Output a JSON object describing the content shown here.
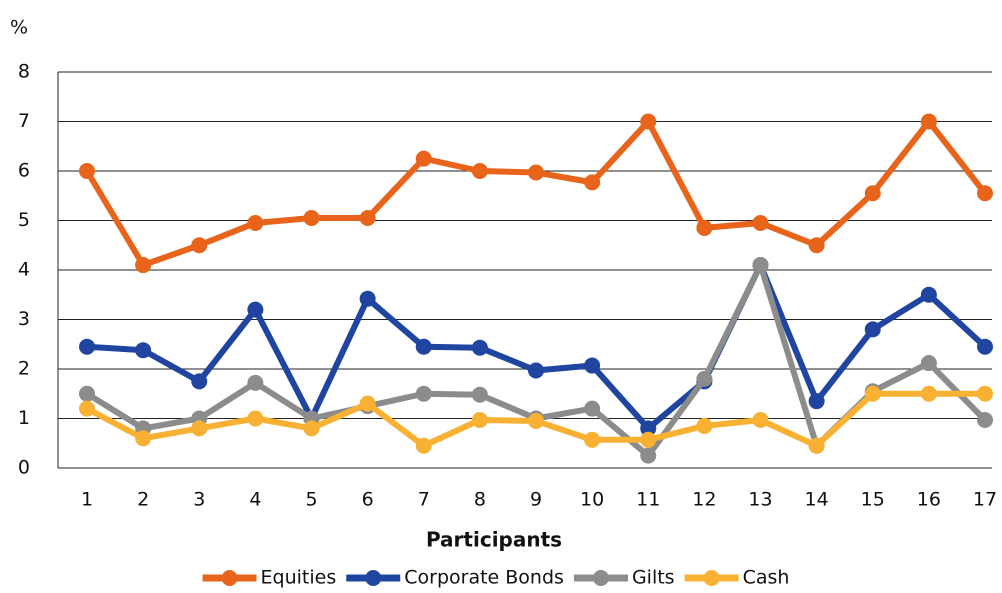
{
  "chart_data": {
    "type": "line",
    "y_axis_label": "%",
    "x_axis_label": "Participants",
    "categories": [
      "1",
      "2",
      "3",
      "4",
      "5",
      "6",
      "7",
      "8",
      "9",
      "10",
      "11",
      "12",
      "13",
      "14",
      "15",
      "16",
      "17"
    ],
    "series": [
      {
        "name": "Equities",
        "color": "#e8641b",
        "values": [
          6,
          4.1,
          4.5,
          4.95,
          5.05,
          5.05,
          6.25,
          6,
          5.97,
          5.77,
          7,
          4.85,
          4.95,
          4.5,
          5.55,
          7,
          5.55
        ]
      },
      {
        "name": "Corporate Bonds",
        "color": "#1f45a0",
        "values": [
          2.45,
          2.38,
          1.75,
          3.2,
          1.0,
          3.42,
          2.45,
          2.43,
          1.97,
          2.07,
          0.8,
          1.75,
          4.1,
          1.35,
          2.8,
          3.5,
          2.45
        ]
      },
      {
        "name": "Gilts",
        "color": "#8c8c8c",
        "values": [
          1.5,
          0.8,
          1.0,
          1.72,
          1.0,
          1.25,
          1.5,
          1.48,
          1.0,
          1.2,
          0.25,
          1.8,
          4.1,
          0.45,
          1.55,
          2.12,
          0.97
        ]
      },
      {
        "name": "Cash",
        "color": "#f8b133",
        "values": [
          1.2,
          0.6,
          0.8,
          1.0,
          0.8,
          1.3,
          0.45,
          0.97,
          0.95,
          0.57,
          0.57,
          0.85,
          0.97,
          0.45,
          1.5,
          1.5,
          1.5
        ]
      }
    ],
    "ylim": [
      0,
      8
    ],
    "yticks": [
      0,
      1,
      2,
      3,
      4,
      5,
      6,
      7,
      8
    ],
    "grid": true,
    "legend": "bottom"
  }
}
